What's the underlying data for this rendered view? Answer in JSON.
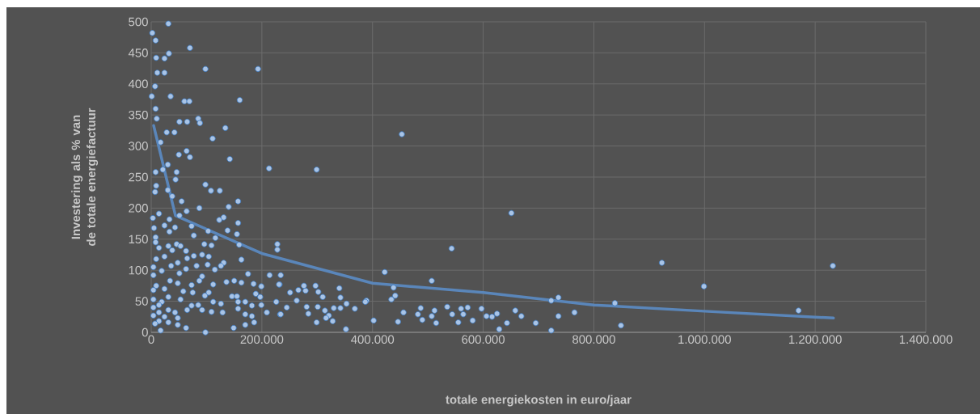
{
  "chart_data": {
    "type": "scatter",
    "xlabel": "totale energiekosten in euro/jaar",
    "ylabel": "Investering als % van de totale energiefactuur",
    "xlim": [
      0,
      1400000
    ],
    "ylim": [
      0,
      500
    ],
    "xticks": [
      0,
      {
        "value": 200000,
        "label": "200.000"
      },
      {
        "value": 400000,
        "label": "400.000"
      },
      {
        "value": 600000,
        "label": "600.000"
      },
      {
        "value": 800000,
        "label": "800.000"
      },
      {
        "value": 1000000,
        "label": "1.000.000"
      },
      {
        "value": 1200000,
        "label": "1.200.000"
      },
      {
        "value": 1400000,
        "label": "1.400.000"
      }
    ],
    "yticks": [
      0,
      50,
      100,
      150,
      200,
      250,
      300,
      350,
      400,
      450,
      500
    ],
    "grid": true,
    "series": [
      {
        "marker": "circle",
        "color": "#a9c4e6",
        "x": [
          31000,
          2000,
          8000,
          70000,
          9000,
          24000,
          32000,
          98000,
          193000,
          11000,
          24000,
          7000,
          1000,
          35000,
          60000,
          69000,
          160000,
          8000,
          10000,
          51000,
          65000,
          85000,
          88000,
          134000,
          28000,
          42000,
          111000,
          17000,
          142000,
          50000,
          64000,
          70000,
          213000,
          299000,
          8000,
          21000,
          30000,
          46000,
          44000,
          98000,
          108000,
          124000,
          9000,
          7000,
          30000,
          38000,
          55000,
          157000,
          87000,
          140000,
          64000,
          14000,
          3000,
          33000,
          51000,
          123000,
          131000,
          5000,
          24000,
          43000,
          73000,
          157000,
          138000,
          103000,
          33000,
          77000,
          155000,
          8000,
          116000,
          8000,
          96000,
          159000,
          31000,
          46000,
          53000,
          109000,
          63000,
          14000,
          38000,
          9000,
          24000,
          163000,
          65000,
          77000,
          92000,
          104000,
          4000,
          36000,
          48000,
          82000,
          102000,
          131000,
          126000,
          63000,
          115000,
          19000,
          4000,
          51000,
          92000,
          175000,
          214000,
          34000,
          48000,
          73000,
          87000,
          112000,
          136000,
          150000,
          163000,
          185000,
          199000,
          232000,
          9000,
          24000,
          58000,
          75000,
          97000,
          104000,
          146000,
          155000,
          189000,
          197000,
          4000,
          31000,
          19000,
          53000,
          73000,
          85000,
          112000,
          126000,
          157000,
          170000,
          182000,
          199000,
          226000,
          4000,
          14000,
          31000,
          43000,
          65000,
          92000,
          109000,
          129000,
          157000,
          170000,
          209000,
          233000,
          4000,
          24000,
          48000,
          182000,
          14000,
          31000,
          48000,
          63000,
          149000,
          170000,
          186000,
          17000,
          98000,
          4000,
          14000,
          7000,
          453000,
          651000,
          543000,
          228000,
          228000,
          422000,
          507000,
          438000,
          441000,
          434000,
          736000,
          723000,
          765000,
          736000,
          723000,
          695000,
          658000,
          669000,
          643000,
          629000,
          625000,
          616000,
          606000,
          597000,
          581000,
          572000,
          564000,
          560000,
          555000,
          544000,
          535000,
          515000,
          512000,
          507000,
          490000,
          487000,
          482000,
          456000,
          446000,
          402000,
          389000,
          387000,
          368000,
          353000,
          352000,
          342000,
          340000,
          342000,
          330000,
          328000,
          321000,
          314000,
          316000,
          301000,
          299000,
          310000,
          302000,
          297000,
          284000,
          281000,
          279000,
          276000,
          266000,
          263000,
          251000,
          245000,
          234000,
          234000,
          231000,
          923000,
          999000,
          838000,
          849000,
          1170000,
          1232000
        ],
        "values": [
          497,
          482,
          470,
          458,
          442,
          441,
          449,
          424,
          424,
          418,
          418,
          396,
          380,
          380,
          372,
          372,
          374,
          360,
          344,
          339,
          339,
          344,
          337,
          329,
          322,
          322,
          312,
          306,
          279,
          286,
          292,
          282,
          264,
          262,
          258,
          262,
          270,
          258,
          246,
          238,
          228,
          228,
          236,
          226,
          229,
          219,
          211,
          211,
          200,
          202,
          195,
          191,
          184,
          182,
          188,
          181,
          185,
          168,
          172,
          169,
          171,
          176,
          164,
          163,
          162,
          156,
          158,
          153,
          152,
          145,
          142,
          141,
          139,
          142,
          139,
          140,
          131,
          136,
          132,
          118,
          122,
          117,
          119,
          123,
          125,
          122,
          105,
          107,
          112,
          107,
          109,
          112,
          107,
          102,
          101,
          99,
          92,
          95,
          90,
          94,
          92,
          83,
          79,
          76,
          83,
          77,
          81,
          83,
          80,
          78,
          74,
          77,
          75,
          70,
          66,
          64,
          59,
          64,
          58,
          58,
          62,
          57,
          53,
          57,
          49,
          53,
          43,
          44,
          49,
          46,
          49,
          49,
          43,
          44,
          49,
          40,
          32,
          36,
          32,
          36,
          36,
          33,
          32,
          38,
          29,
          32,
          29,
          27,
          25,
          23,
          26,
          18,
          16,
          12,
          7,
          7,
          12,
          16,
          3,
          0,
          68,
          44,
          14,
          319,
          192,
          135,
          142,
          133,
          97,
          83,
          72,
          59,
          53,
          56,
          51,
          32,
          26,
          3,
          15,
          35,
          26,
          15,
          5,
          30,
          25,
          26,
          38,
          19,
          40,
          29,
          38,
          16,
          29,
          41,
          15,
          35,
          26,
          20,
          39,
          29,
          32,
          17,
          19,
          51,
          49,
          38,
          46,
          5,
          56,
          71,
          39,
          39,
          18,
          27,
          35,
          23,
          41,
          16,
          57,
          65,
          75,
          30,
          41,
          67,
          75,
          68,
          51,
          64,
          40,
          92,
          29,
          77,
          112,
          74,
          47,
          11,
          35,
          107
        ]
      },
      {
        "type": "line",
        "marker": "none",
        "color": "#5a86ba",
        "x": [
          4400,
          43800,
          200000,
          400000,
          600000,
          800000,
          1000000,
          1233000
        ],
        "values": [
          333,
          188,
          127,
          79,
          64,
          44,
          34,
          23
        ]
      }
    ]
  }
}
